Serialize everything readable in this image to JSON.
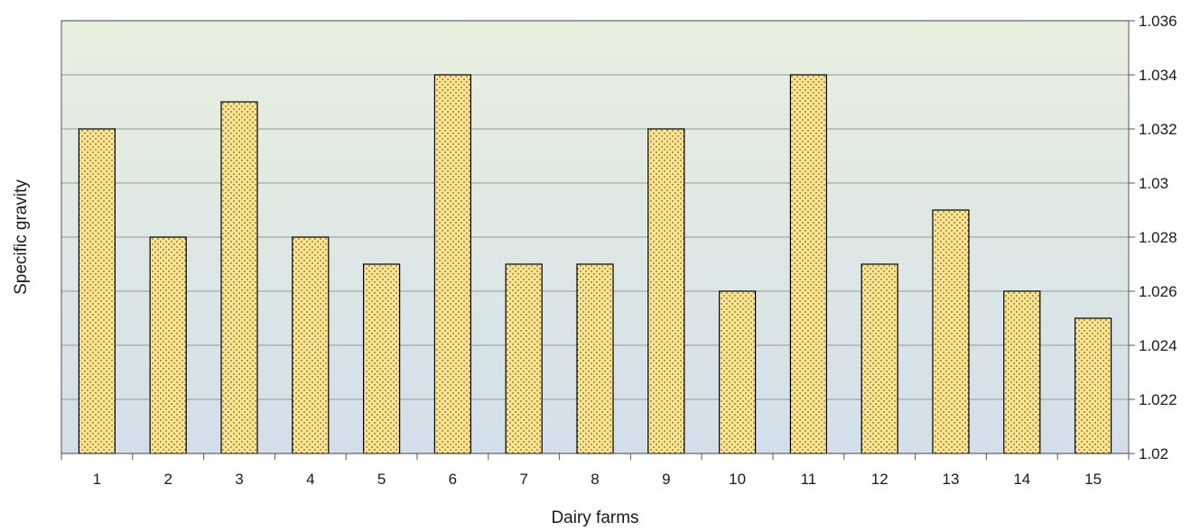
{
  "chart_data": {
    "type": "bar",
    "title": "",
    "xlabel": "Dairy farms",
    "ylabel": "Specific gravity",
    "categories": [
      "1",
      "2",
      "3",
      "4",
      "5",
      "6",
      "7",
      "8",
      "9",
      "10",
      "11",
      "12",
      "13",
      "14",
      "15"
    ],
    "values": [
      1.032,
      1.028,
      1.033,
      1.028,
      1.027,
      1.034,
      1.027,
      1.027,
      1.032,
      1.026,
      1.034,
      1.027,
      1.029,
      1.026,
      1.025
    ],
    "ylim": [
      1.02,
      1.036
    ],
    "yticks": [
      "1.02",
      "1.022",
      "1.024",
      "1.026",
      "1.028",
      "1.03",
      "1.032",
      "1.034",
      "1.036"
    ],
    "y_axis_side": "right",
    "grid": true,
    "legend": "none",
    "colors": {
      "bar_fill": "#ffe48c",
      "bar_pattern_dots": "#2a2a2a",
      "bar_stroke": "#000000",
      "background_top": "#e9f0de",
      "background_bottom": "#d2dfeb",
      "gridline": "#a6a6a6"
    }
  }
}
